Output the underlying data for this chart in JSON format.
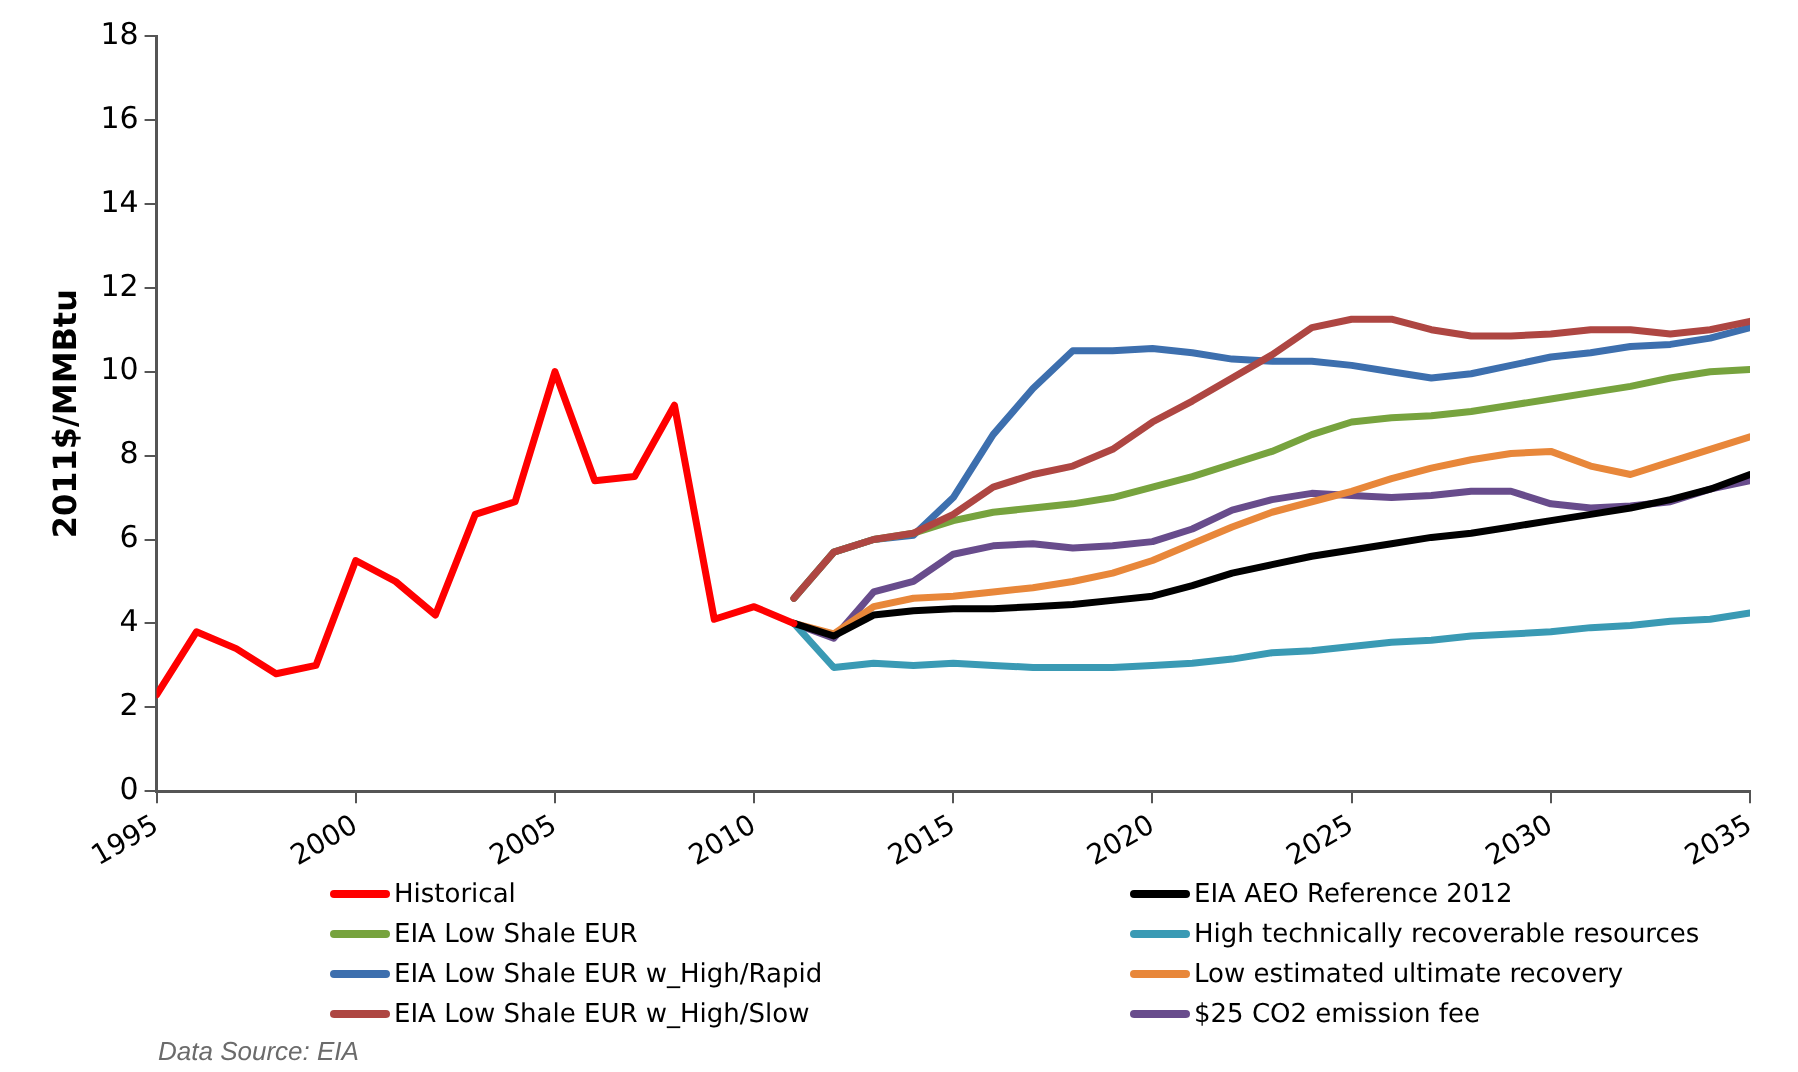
{
  "chart_data": {
    "type": "line",
    "ylabel": "2011$/MMBtu",
    "xlim": [
      1995,
      2035
    ],
    "xticks": [
      1995,
      2000,
      2005,
      2010,
      2015,
      2020,
      2025,
      2030,
      2035
    ],
    "ylim": [
      0,
      18
    ],
    "yticks": [
      0,
      2,
      4,
      6,
      8,
      10,
      12,
      14,
      16,
      18
    ],
    "grid": false,
    "legend": "bottom",
    "marker": "none",
    "line_style": "solid",
    "annotations": [
      "Data Source: EIA"
    ],
    "series": [
      {
        "name": "Historical",
        "color": "#ff0000",
        "x": [
          1995,
          1996,
          1997,
          1998,
          1999,
          2000,
          2001,
          2002,
          2003,
          2004,
          2005,
          2006,
          2007,
          2008,
          2009,
          2010,
          2011
        ],
        "values": [
          2.3,
          3.8,
          3.4,
          2.8,
          3.0,
          5.5,
          5.0,
          4.2,
          6.6,
          6.9,
          10.0,
          7.4,
          7.5,
          9.2,
          4.1,
          4.4,
          4.0
        ]
      },
      {
        "name": "EIA AEO Reference 2012",
        "color": "#000000",
        "x": [
          2011,
          2012,
          2013,
          2014,
          2015,
          2016,
          2017,
          2018,
          2019,
          2020,
          2021,
          2022,
          2023,
          2024,
          2025,
          2026,
          2027,
          2028,
          2029,
          2030,
          2031,
          2032,
          2033,
          2034,
          2035
        ],
        "values": [
          4.0,
          3.7,
          4.2,
          4.3,
          4.35,
          4.35,
          4.4,
          4.45,
          4.55,
          4.65,
          4.9,
          5.2,
          5.4,
          5.6,
          5.75,
          5.9,
          6.05,
          6.15,
          6.3,
          6.45,
          6.6,
          6.75,
          6.95,
          7.2,
          7.55
        ]
      },
      {
        "name": "EIA Low Shale EUR",
        "color": "#77a33e",
        "x": [
          2011,
          2012,
          2013,
          2014,
          2015,
          2016,
          2017,
          2018,
          2019,
          2020,
          2021,
          2022,
          2023,
          2024,
          2025,
          2026,
          2027,
          2028,
          2029,
          2030,
          2031,
          2032,
          2033,
          2034,
          2035
        ],
        "values": [
          4.6,
          5.7,
          6.0,
          6.15,
          6.45,
          6.65,
          6.75,
          6.85,
          7.0,
          7.25,
          7.5,
          7.8,
          8.1,
          8.5,
          8.8,
          8.9,
          8.95,
          9.05,
          9.2,
          9.35,
          9.5,
          9.65,
          9.85,
          10.0,
          10.05
        ]
      },
      {
        "name": "High technically recoverable resources",
        "color": "#3a9ab4",
        "x": [
          2011,
          2012,
          2013,
          2014,
          2015,
          2016,
          2017,
          2018,
          2019,
          2020,
          2021,
          2022,
          2023,
          2024,
          2025,
          2026,
          2027,
          2028,
          2029,
          2030,
          2031,
          2032,
          2033,
          2034,
          2035
        ],
        "values": [
          4.0,
          2.95,
          3.05,
          3.0,
          3.05,
          3.0,
          2.95,
          2.95,
          2.95,
          3.0,
          3.05,
          3.15,
          3.3,
          3.35,
          3.45,
          3.55,
          3.6,
          3.7,
          3.75,
          3.8,
          3.9,
          3.95,
          4.05,
          4.1,
          4.25
        ]
      },
      {
        "name": "EIA Low Shale EUR w_High/Rapid",
        "color": "#3d6fae",
        "x": [
          2011,
          2012,
          2013,
          2014,
          2015,
          2016,
          2017,
          2018,
          2019,
          2020,
          2021,
          2022,
          2023,
          2024,
          2025,
          2026,
          2027,
          2028,
          2029,
          2030,
          2031,
          2032,
          2033,
          2034,
          2035
        ],
        "values": [
          4.6,
          5.7,
          6.0,
          6.1,
          7.0,
          8.5,
          9.6,
          10.5,
          10.5,
          10.55,
          10.45,
          10.3,
          10.25,
          10.25,
          10.15,
          10.0,
          9.85,
          9.95,
          10.15,
          10.35,
          10.45,
          10.6,
          10.65,
          10.8,
          11.05
        ]
      },
      {
        "name": "Low estimated ultimate recovery",
        "color": "#e8873a",
        "x": [
          2011,
          2012,
          2013,
          2014,
          2015,
          2016,
          2017,
          2018,
          2019,
          2020,
          2021,
          2022,
          2023,
          2024,
          2025,
          2026,
          2027,
          2028,
          2029,
          2030,
          2031,
          2032,
          2033,
          2034,
          2035
        ],
        "values": [
          4.0,
          3.75,
          4.4,
          4.6,
          4.65,
          4.75,
          4.85,
          5.0,
          5.2,
          5.5,
          5.9,
          6.3,
          6.65,
          6.9,
          7.15,
          7.45,
          7.7,
          7.9,
          8.05,
          8.1,
          7.75,
          7.55,
          7.85,
          8.15,
          8.45
        ]
      },
      {
        "name": "EIA Low Shale EUR w_High/Slow",
        "color": "#ae4642",
        "x": [
          2011,
          2012,
          2013,
          2014,
          2015,
          2016,
          2017,
          2018,
          2019,
          2020,
          2021,
          2022,
          2023,
          2024,
          2025,
          2026,
          2027,
          2028,
          2029,
          2030,
          2031,
          2032,
          2033,
          2034,
          2035
        ],
        "values": [
          4.6,
          5.7,
          6.0,
          6.15,
          6.6,
          7.25,
          7.55,
          7.75,
          8.15,
          8.8,
          9.3,
          9.85,
          10.4,
          11.05,
          11.25,
          11.25,
          11.0,
          10.85,
          10.85,
          10.9,
          11.0,
          11.0,
          10.9,
          11.0,
          11.2
        ]
      },
      {
        "name": "$25 CO2 emission fee",
        "color": "#684c8c",
        "x": [
          2011,
          2012,
          2013,
          2014,
          2015,
          2016,
          2017,
          2018,
          2019,
          2020,
          2021,
          2022,
          2023,
          2024,
          2025,
          2026,
          2027,
          2028,
          2029,
          2030,
          2031,
          2032,
          2033,
          2034,
          2035
        ],
        "values": [
          4.0,
          3.65,
          4.75,
          5.0,
          5.65,
          5.85,
          5.9,
          5.8,
          5.85,
          5.95,
          6.25,
          6.7,
          6.95,
          7.1,
          7.05,
          7.0,
          7.05,
          7.15,
          7.15,
          6.85,
          6.75,
          6.8,
          6.9,
          7.2,
          7.4
        ]
      }
    ]
  }
}
